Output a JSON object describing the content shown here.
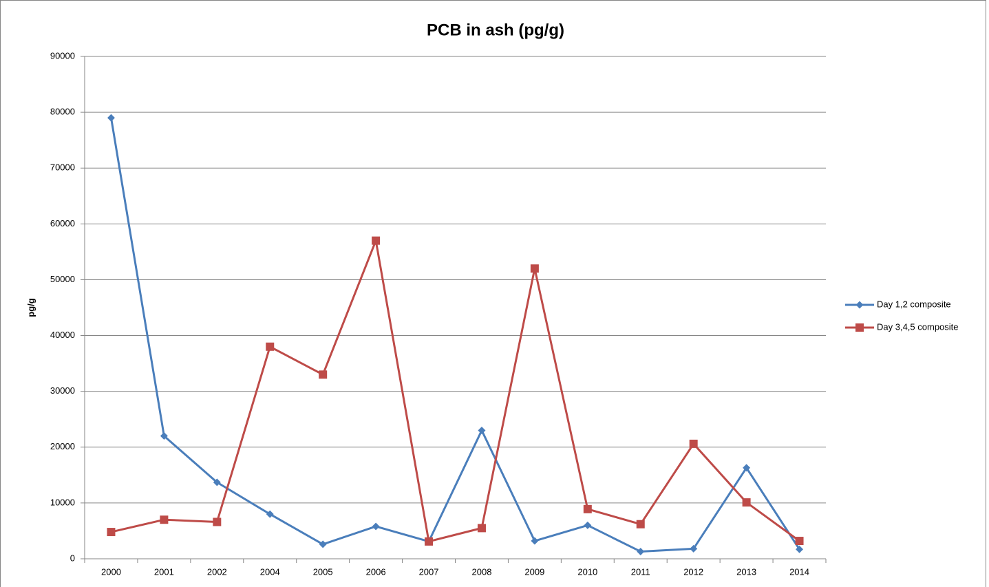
{
  "chart_data": {
    "type": "line",
    "title": "PCB in ash  (pg/g)",
    "y_label": "pg/g",
    "categories": [
      "2000",
      "2001",
      "2002",
      "2004",
      "2005",
      "2006",
      "2007",
      "2008",
      "2009",
      "2010",
      "2011",
      "2012",
      "2013",
      "2014"
    ],
    "series": [
      {
        "name": "Day 1,2 composite",
        "color": "#4a7ebb",
        "marker": "diamond",
        "values": [
          79000,
          22000,
          13700,
          8000,
          2600,
          5800,
          3100,
          23000,
          3200,
          6000,
          1300,
          1800,
          16300,
          1700
        ]
      },
      {
        "name": "Day 3,4,5 composite",
        "color": "#be4b48",
        "marker": "square",
        "values": [
          4800,
          7000,
          6600,
          38000,
          33000,
          57000,
          3100,
          5500,
          52000,
          8900,
          6200,
          20600,
          10100,
          3200
        ]
      }
    ],
    "ylim": [
      0,
      90000
    ],
    "yticks": [
      0,
      10000,
      20000,
      30000,
      40000,
      50000,
      60000,
      70000,
      80000,
      90000
    ],
    "grid": true,
    "legend": "right"
  }
}
